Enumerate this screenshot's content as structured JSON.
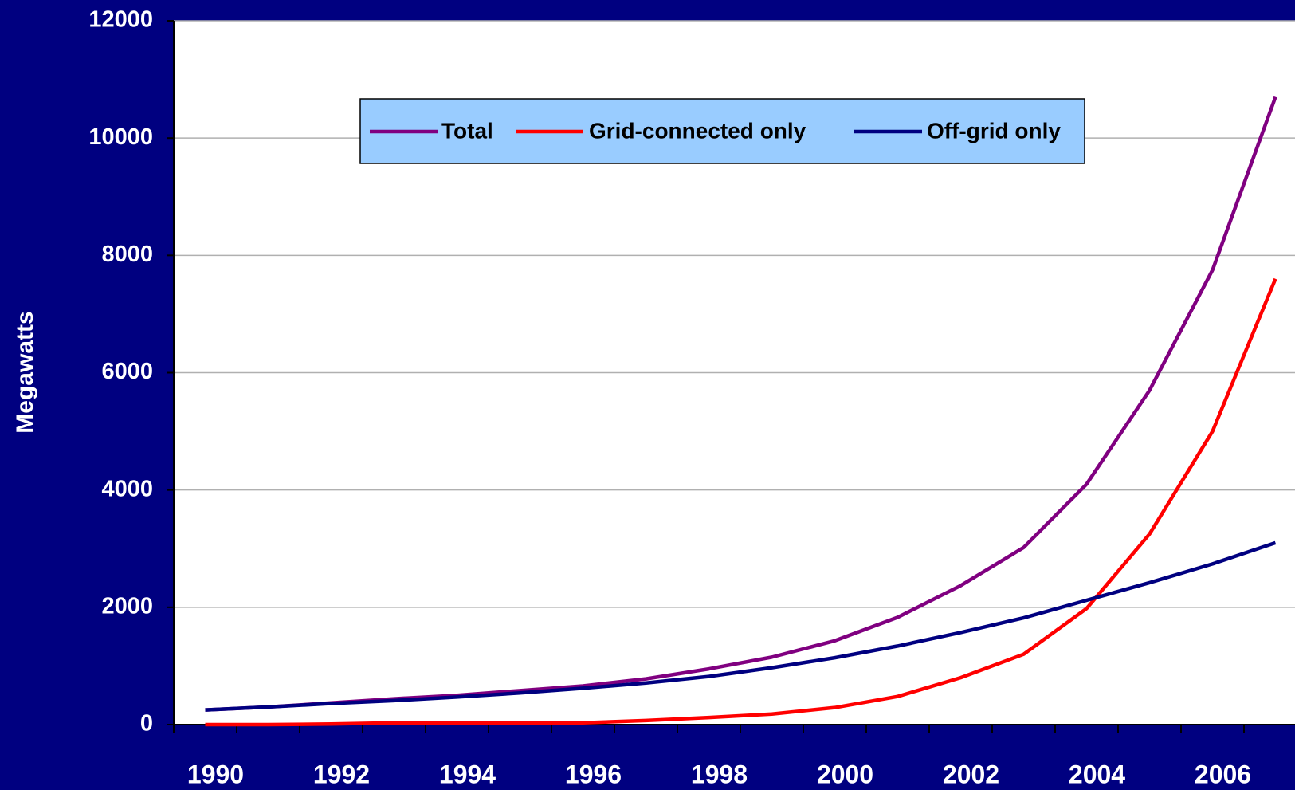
{
  "chart_data": {
    "type": "line",
    "y_label": "Megawatts",
    "categories": [
      "1990",
      null,
      "1992",
      null,
      "1994",
      null,
      "1996",
      null,
      "1998",
      null,
      "2000",
      null,
      "2002",
      null,
      "2004",
      null,
      "2006",
      null
    ],
    "series": [
      {
        "name": "Total",
        "color": "#800080",
        "values": [
          250,
          300,
          370,
          440,
          500,
          580,
          660,
          780,
          950,
          1150,
          1430,
          1830,
          2370,
          3020,
          4100,
          5700,
          7750,
          10700
        ]
      },
      {
        "name": "Grid-connected only",
        "color": "#ff0000",
        "values": [
          0,
          0,
          10,
          30,
          30,
          30,
          30,
          70,
          120,
          180,
          290,
          480,
          800,
          1200,
          1980,
          3250,
          5000,
          7600
        ]
      },
      {
        "name": "Off-grid only",
        "color": "#000080",
        "values": [
          250,
          300,
          360,
          410,
          470,
          540,
          620,
          710,
          820,
          970,
          1140,
          1340,
          1570,
          1820,
          2120,
          2420,
          2740,
          3100
        ]
      }
    ],
    "ylim": [
      0,
      12000
    ],
    "yticks": [
      0,
      2000,
      4000,
      6000,
      8000,
      10000,
      12000
    ],
    "grid": true
  }
}
